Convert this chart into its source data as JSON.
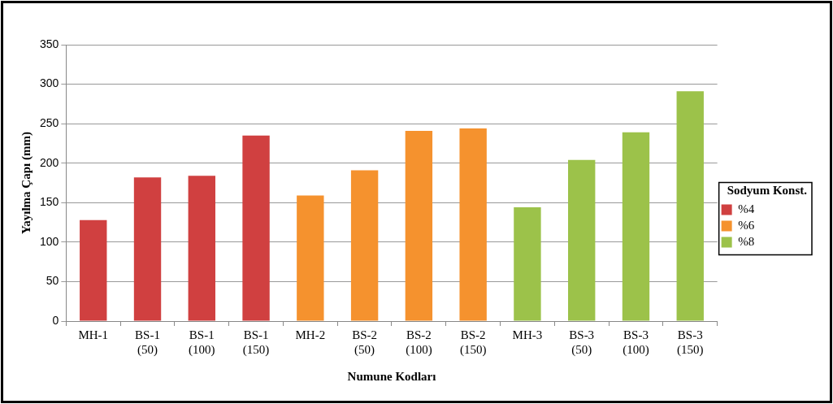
{
  "chart_data": {
    "type": "bar",
    "xlabel": "Numune Kodları",
    "ylabel": "Yayılma Çapı (mm)",
    "legend_title": "Sodyum Konst.",
    "categories": [
      "MH-1",
      "BS-1 (50)",
      "BS-1 (100)",
      "BS-1 (150)",
      "MH-2",
      "BS-2 (50)",
      "BS-2 (100)",
      "BS-2 (150)",
      "MH-3",
      "BS-3 (50)",
      "BS-3 (100)",
      "BS-3 (150)"
    ],
    "series": [
      {
        "name": "%4",
        "color": "#d04040",
        "values": [
          128,
          182,
          184,
          235,
          null,
          null,
          null,
          null,
          null,
          null,
          null,
          null
        ]
      },
      {
        "name": "%6",
        "color": "#f5922e",
        "values": [
          null,
          null,
          null,
          null,
          159,
          191,
          241,
          244,
          null,
          null,
          null,
          null
        ]
      },
      {
        "name": "%8",
        "color": "#9cc24a",
        "values": [
          null,
          null,
          null,
          null,
          null,
          null,
          null,
          null,
          144,
          204,
          239,
          291
        ]
      }
    ],
    "ylim": [
      0,
      350
    ],
    "yticks": [
      0,
      50,
      100,
      150,
      200,
      250,
      300,
      350
    ],
    "grid": "y",
    "legend": "right"
  }
}
